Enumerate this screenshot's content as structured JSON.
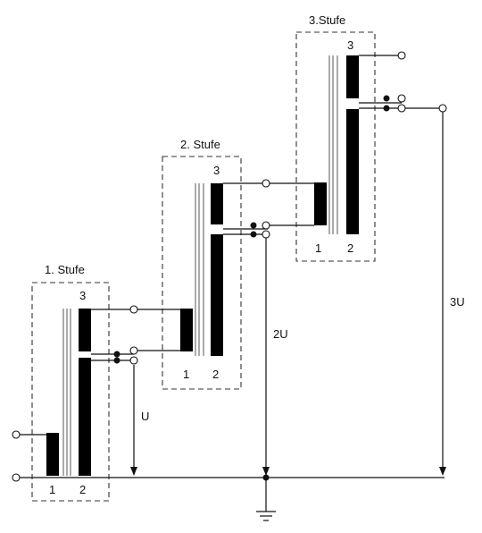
{
  "diagram": {
    "stages": [
      {
        "title": "1. Stufe",
        "winding_labels": [
          "1",
          "2",
          "3"
        ]
      },
      {
        "title": "2. Stufe",
        "winding_labels": [
          "1",
          "2",
          "3"
        ]
      },
      {
        "title": "3.Stufe",
        "winding_labels": [
          "1",
          "2",
          "3"
        ]
      }
    ],
    "voltages": {
      "v1": "U",
      "v2": "2U",
      "v3": "3U"
    }
  }
}
